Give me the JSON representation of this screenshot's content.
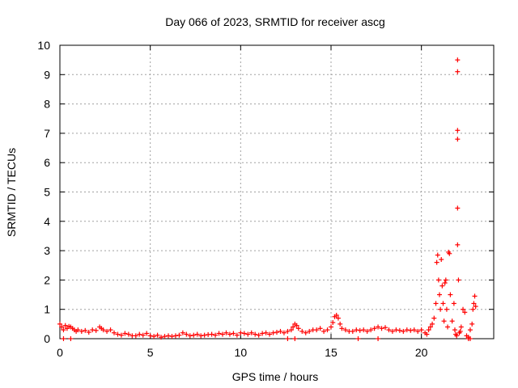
{
  "chart_data": {
    "type": "scatter",
    "title": "Day 066 of 2023, SRMTID for receiver ascg",
    "xlabel": "GPS time / hours",
    "ylabel": "SRMTID / TECUs",
    "xlim": [
      0,
      24
    ],
    "ylim": [
      0,
      10
    ],
    "xticks": [
      0,
      5,
      10,
      15,
      20
    ],
    "yticks": [
      0,
      1,
      2,
      3,
      4,
      5,
      6,
      7,
      8,
      9,
      10
    ],
    "grid": true,
    "marker": "plus",
    "series": [
      {
        "name": "SRMTID",
        "color": "#ff0000",
        "x": [
          0.0,
          0.1,
          0.2,
          0.3,
          0.4,
          0.5,
          0.6,
          0.7,
          0.8,
          0.9,
          1.0,
          1.2,
          1.4,
          1.6,
          1.8,
          2.0,
          2.2,
          2.3,
          2.4,
          2.6,
          2.8,
          3.0,
          3.2,
          3.4,
          3.6,
          3.8,
          4.0,
          4.2,
          4.4,
          4.6,
          4.8,
          5.0,
          5.2,
          5.4,
          5.6,
          5.8,
          6.0,
          6.2,
          6.4,
          6.6,
          6.8,
          7.0,
          7.2,
          7.4,
          7.6,
          7.8,
          8.0,
          8.2,
          8.4,
          8.6,
          8.8,
          9.0,
          9.2,
          9.4,
          9.6,
          9.8,
          10.0,
          10.2,
          10.4,
          10.6,
          10.8,
          11.0,
          11.2,
          11.4,
          11.6,
          11.8,
          12.0,
          12.2,
          12.4,
          12.6,
          12.8,
          12.9,
          13.0,
          13.1,
          13.2,
          13.4,
          13.6,
          13.8,
          14.0,
          14.2,
          14.4,
          14.6,
          14.8,
          15.0,
          15.1,
          15.2,
          15.3,
          15.4,
          15.5,
          15.6,
          15.8,
          16.0,
          16.2,
          16.4,
          16.6,
          16.8,
          17.0,
          17.2,
          17.4,
          17.6,
          17.8,
          18.0,
          18.2,
          18.4,
          18.6,
          18.8,
          19.0,
          19.2,
          19.4,
          19.6,
          19.8,
          20.0,
          20.2,
          20.3,
          20.4,
          20.5,
          20.6,
          20.7,
          20.8,
          20.85,
          20.9,
          20.95,
          21.0,
          21.05,
          21.1,
          21.15,
          21.2,
          21.25,
          21.3,
          21.35,
          21.4,
          21.45,
          21.5,
          21.55,
          21.6,
          21.7,
          21.8,
          21.85,
          21.9,
          21.95,
          22.0,
          22.0,
          22.0,
          22.0,
          22.0,
          22.0,
          22.05,
          22.1,
          22.15,
          22.2,
          22.3,
          22.4,
          22.5,
          22.6,
          22.7,
          22.8,
          22.85,
          22.9,
          22.95,
          23.0,
          0.2,
          0.6,
          12.6,
          13.0,
          16.5,
          17.6,
          22.6,
          22.7
        ],
        "y": [
          0.5,
          0.4,
          0.3,
          0.45,
          0.35,
          0.42,
          0.4,
          0.35,
          0.3,
          0.25,
          0.3,
          0.25,
          0.28,
          0.22,
          0.3,
          0.28,
          0.4,
          0.35,
          0.3,
          0.25,
          0.3,
          0.2,
          0.15,
          0.12,
          0.18,
          0.15,
          0.1,
          0.1,
          0.15,
          0.12,
          0.18,
          0.1,
          0.08,
          0.12,
          0.05,
          0.08,
          0.1,
          0.08,
          0.1,
          0.12,
          0.2,
          0.15,
          0.1,
          0.12,
          0.15,
          0.1,
          0.12,
          0.14,
          0.15,
          0.12,
          0.18,
          0.15,
          0.2,
          0.15,
          0.18,
          0.12,
          0.2,
          0.18,
          0.15,
          0.2,
          0.15,
          0.12,
          0.18,
          0.2,
          0.15,
          0.2,
          0.22,
          0.25,
          0.2,
          0.25,
          0.3,
          0.4,
          0.5,
          0.45,
          0.35,
          0.25,
          0.2,
          0.25,
          0.3,
          0.3,
          0.35,
          0.25,
          0.3,
          0.4,
          0.55,
          0.75,
          0.8,
          0.7,
          0.5,
          0.35,
          0.3,
          0.25,
          0.25,
          0.3,
          0.28,
          0.3,
          0.25,
          0.3,
          0.35,
          0.4,
          0.35,
          0.38,
          0.3,
          0.25,
          0.3,
          0.28,
          0.25,
          0.3,
          0.28,
          0.3,
          0.25,
          0.3,
          0.2,
          0.15,
          0.3,
          0.4,
          0.5,
          0.7,
          1.2,
          2.6,
          2.85,
          2.0,
          1.5,
          1.0,
          2.7,
          1.8,
          1.2,
          0.6,
          1.9,
          2.0,
          1.0,
          0.4,
          2.95,
          2.9,
          1.5,
          0.6,
          1.2,
          0.3,
          0.15,
          0.1,
          9.5,
          9.1,
          7.1,
          6.8,
          4.45,
          3.2,
          2.0,
          0.2,
          0.25,
          0.4,
          1.0,
          0.9,
          0.1,
          0.05,
          0.3,
          0.5,
          1.0,
          1.2,
          1.45,
          1.1,
          0.0,
          0.0,
          0.0,
          0.0,
          0.0,
          0.0,
          0.0,
          0.0
        ]
      }
    ]
  }
}
